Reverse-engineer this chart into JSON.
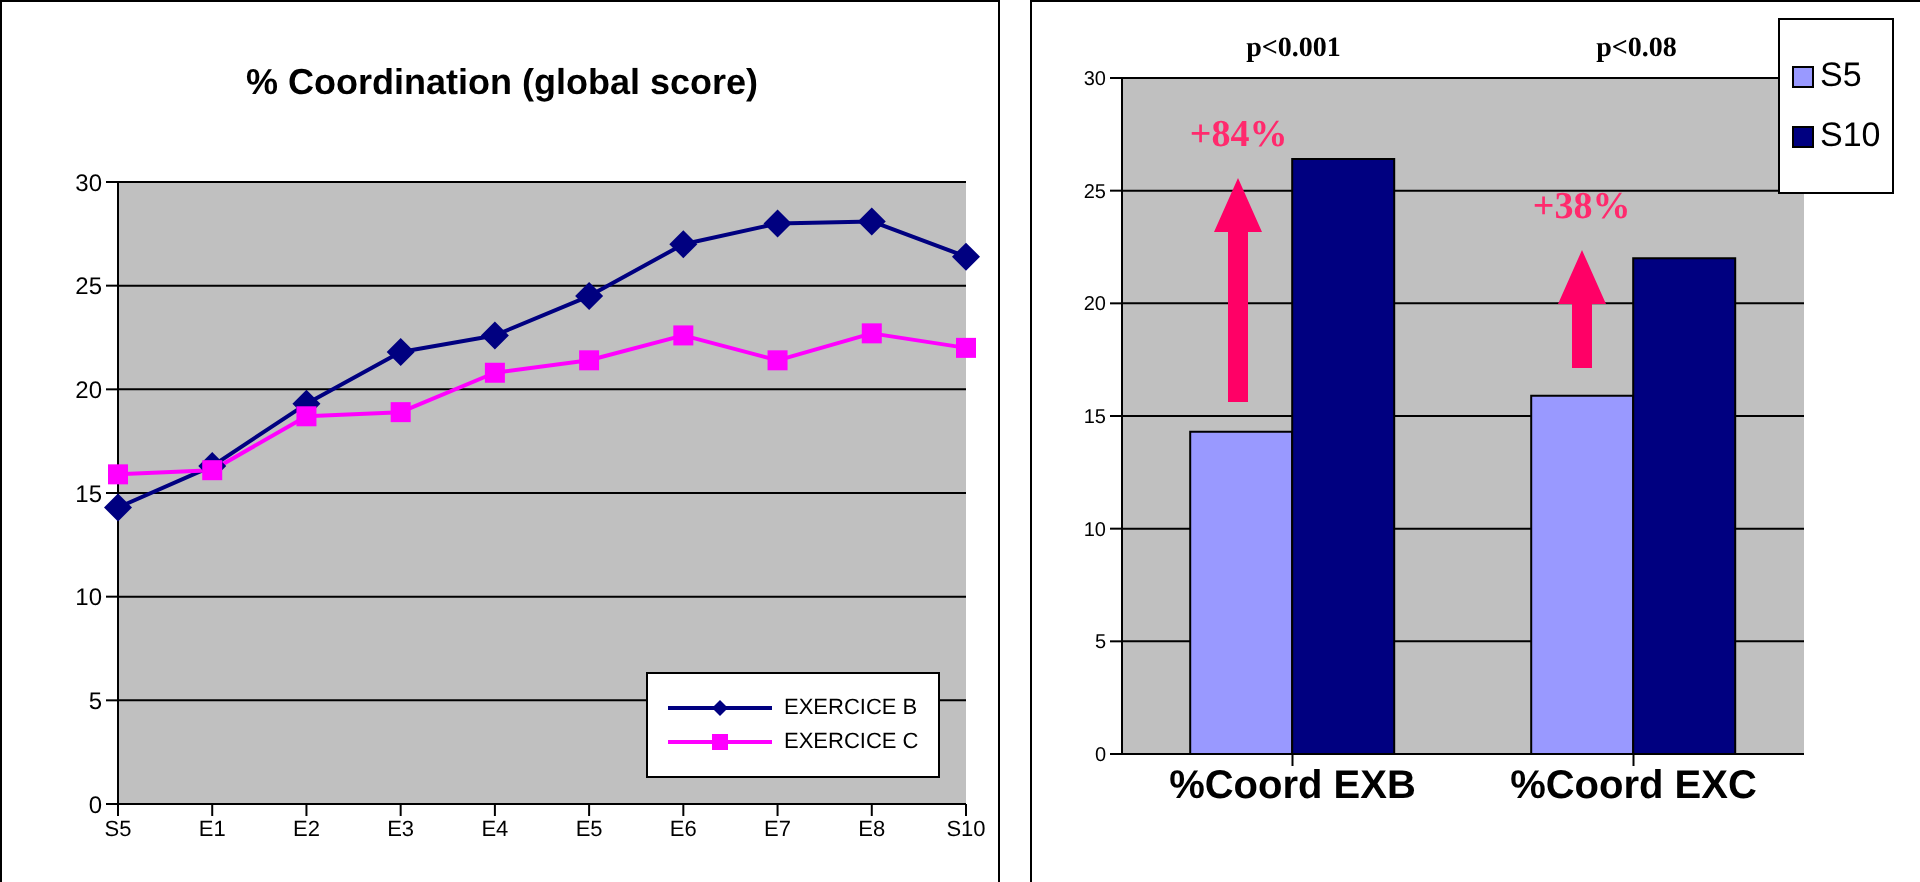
{
  "chart_data": [
    {
      "type": "line",
      "title": "% Coordination (global score)",
      "categories": [
        "S5",
        "E1",
        "E2",
        "E3",
        "E4",
        "E5",
        "E6",
        "E7",
        "E8",
        "S10"
      ],
      "series": [
        {
          "name": "EXERCICE B",
          "color": "#000080",
          "marker": "diamond",
          "values": [
            14.3,
            16.3,
            19.3,
            21.8,
            22.6,
            24.5,
            27.0,
            28.0,
            28.1,
            26.4
          ]
        },
        {
          "name": "EXERCICE C",
          "color": "#ff00ff",
          "marker": "square",
          "values": [
            15.9,
            16.1,
            18.7,
            18.9,
            20.8,
            21.4,
            22.6,
            21.4,
            22.7,
            22.0
          ]
        }
      ],
      "ylim": [
        0,
        30
      ],
      "yticks": [
        0,
        5,
        10,
        15,
        20,
        25,
        30
      ],
      "grid": "y",
      "legend": "bottom right"
    },
    {
      "type": "bar",
      "categories": [
        "%Coord EXB",
        "%Coord EXC"
      ],
      "series": [
        {
          "name": "S5",
          "color": "#9999ff",
          "values": [
            14.3,
            15.9
          ]
        },
        {
          "name": "S10",
          "color": "#000080",
          "values": [
            26.4,
            22.0
          ]
        }
      ],
      "ylim": [
        0,
        30
      ],
      "yticks": [
        0,
        5,
        10,
        15,
        20,
        25,
        30
      ],
      "grid": "y",
      "legend": "top right",
      "annotations": [
        "p<0.001",
        "p<0.08",
        "+84%",
        "+38%"
      ]
    }
  ]
}
